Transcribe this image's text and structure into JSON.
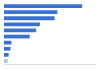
{
  "chart_data": {
    "type": "bar",
    "orientation": "horizontal",
    "categories": [
      null,
      null,
      null,
      null,
      null,
      null,
      null,
      null,
      null,
      null
    ],
    "values": [
      85,
      58,
      55,
      39,
      35,
      28,
      8,
      7,
      5,
      4
    ],
    "colors": [
      "#3a72d0",
      "#3a72d0",
      "#3a72d0",
      "#3a72d0",
      "#3a72d0",
      "#3a72d0",
      "#3a72d0",
      "#3a72d0",
      "#3a72d0",
      "#a9c3e8"
    ],
    "xlim": [
      0,
      100
    ],
    "tick_labels": false,
    "grid": false
  }
}
